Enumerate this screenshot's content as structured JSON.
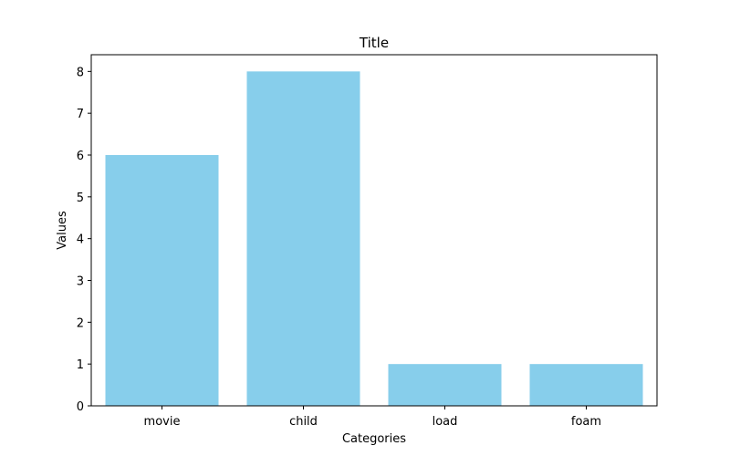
{
  "chart_data": {
    "type": "bar",
    "title": "Title",
    "xlabel": "Categories",
    "ylabel": "Values",
    "categories": [
      "movie",
      "child",
      "load",
      "foam"
    ],
    "values": [
      6,
      8,
      1,
      1
    ],
    "ylim": [
      0,
      8.4
    ],
    "yticks": [
      0,
      1,
      2,
      3,
      4,
      5,
      6,
      7,
      8
    ],
    "grid": false,
    "bar_color": "#87CEEB",
    "axis_color": "#000000"
  }
}
